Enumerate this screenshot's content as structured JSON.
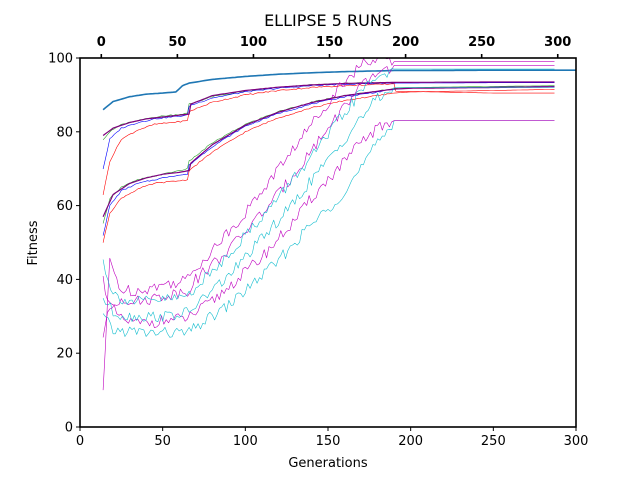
{
  "chart_data": {
    "type": "line",
    "title": "ELLIPSE 5 RUNS",
    "xlabel": "Generations",
    "ylabel": "Fitness",
    "xlim": [
      0,
      300
    ],
    "ylim": [
      0,
      100
    ],
    "xticks": [
      0,
      50,
      100,
      150,
      200,
      250,
      300
    ],
    "yticks": [
      0,
      20,
      40,
      60,
      80,
      100
    ],
    "top_axis": {
      "offset": 14,
      "xlim": [
        -14,
        312
      ],
      "ticks": [
        0,
        50,
        100,
        150,
        200,
        250,
        300
      ]
    },
    "grid": false,
    "legend": "none",
    "series": [
      {
        "color": "#1f77b4",
        "width": 1.6,
        "x": [
          14,
          20,
          30,
          40,
          50,
          58,
          62,
          66,
          80,
          100,
          120,
          140,
          160,
          180,
          190,
          200,
          250,
          300
        ],
        "y": [
          86,
          88.2,
          89.5,
          90.2,
          90.5,
          90.8,
          92.5,
          93.2,
          94.2,
          95,
          95.6,
          96,
          96.3,
          96.5,
          96.6,
          96.6,
          96.7,
          96.7
        ]
      },
      {
        "color": "#2ca02c",
        "width": 0.6,
        "x": [
          14,
          18,
          25,
          35,
          45,
          55,
          65,
          66,
          80,
          100,
          120,
          140,
          160,
          180,
          188,
          200,
          250,
          287
        ],
        "y": [
          78,
          80,
          82,
          83,
          84,
          84.5,
          85,
          87.5,
          89.5,
          91,
          92,
          92.7,
          93.1,
          93.3,
          93.4,
          93.4,
          93.5,
          93.5
        ]
      },
      {
        "color": "#0000ff",
        "width": 0.6,
        "x": [
          14,
          18,
          25,
          35,
          45,
          55,
          65,
          66,
          80,
          100,
          120,
          140,
          160,
          180,
          188,
          200,
          250,
          287
        ],
        "y": [
          70,
          78,
          81,
          82.5,
          83.5,
          84,
          84.5,
          87,
          89.2,
          90.8,
          91.8,
          92.5,
          92.9,
          93.1,
          93.2,
          93.2,
          93.3,
          93.3
        ]
      },
      {
        "color": "#ff0000",
        "width": 0.6,
        "x": [
          14,
          18,
          25,
          35,
          45,
          55,
          65,
          66,
          80,
          100,
          120,
          140,
          160,
          180,
          190,
          191,
          250,
          287
        ],
        "y": [
          63,
          72,
          78,
          80.5,
          82,
          82.5,
          83,
          85.5,
          88,
          90,
          91.2,
          92,
          92.5,
          92.8,
          93,
          91,
          90.5,
          90.5
        ]
      },
      {
        "color": "#7f007f",
        "width": 1.2,
        "x": [
          14,
          20,
          30,
          40,
          50,
          60,
          66,
          67,
          80,
          100,
          120,
          140,
          160,
          180,
          190,
          200,
          250,
          287
        ],
        "y": [
          79,
          81,
          82.5,
          83.5,
          84,
          84.5,
          84.8,
          87.5,
          89.8,
          91.2,
          92.1,
          92.7,
          93.1,
          93.3,
          93.4,
          93.4,
          93.5,
          93.5
        ]
      },
      {
        "color": "#2ca02c",
        "width": 0.6,
        "x": [
          14,
          18,
          25,
          35,
          45,
          55,
          65,
          66,
          80,
          100,
          120,
          140,
          160,
          180,
          190,
          200,
          250,
          287
        ],
        "y": [
          55,
          62,
          65,
          67,
          68,
          69,
          70,
          72,
          77,
          82,
          85.5,
          88,
          89.8,
          91,
          91.8,
          92,
          92.3,
          92.5
        ]
      },
      {
        "color": "#0000ff",
        "width": 0.6,
        "x": [
          14,
          18,
          25,
          35,
          45,
          55,
          65,
          66,
          80,
          100,
          120,
          140,
          160,
          180,
          190,
          200,
          250,
          287
        ],
        "y": [
          52,
          60,
          64,
          66,
          67,
          68,
          68.5,
          71,
          76,
          81.5,
          85,
          87.5,
          89.5,
          90.8,
          91.5,
          91.8,
          92.1,
          92.3
        ]
      },
      {
        "color": "#ff0000",
        "width": 0.6,
        "x": [
          14,
          18,
          25,
          35,
          45,
          55,
          65,
          66,
          80,
          100,
          120,
          140,
          160,
          180,
          190,
          200,
          250,
          287
        ],
        "y": [
          50,
          58,
          62,
          64.5,
          66,
          66.5,
          67,
          69.5,
          74.5,
          80,
          83.8,
          86.5,
          88.5,
          89.8,
          90.5,
          90.8,
          91.2,
          91.5
        ]
      },
      {
        "color": "#7f007f",
        "width": 1.2,
        "x": [
          14,
          20,
          30,
          40,
          50,
          60,
          66,
          67,
          80,
          100,
          120,
          140,
          160,
          180,
          190,
          200,
          250,
          287
        ],
        "y": [
          57,
          63,
          66,
          67.5,
          68.5,
          69,
          69.5,
          71.5,
          76.5,
          81.8,
          85.3,
          87.9,
          89.8,
          91,
          91.6,
          91.8,
          92,
          92.2
        ]
      },
      {
        "color": "#17becf",
        "width": 0.6,
        "x": [
          14,
          20,
          30,
          40,
          50,
          60,
          66,
          70,
          80,
          90,
          100,
          110,
          120,
          130,
          140,
          150,
          160,
          170,
          180,
          190,
          191,
          250,
          287
        ],
        "y": [
          30,
          26,
          26,
          25.5,
          25.5,
          25.5,
          25.5,
          27,
          30,
          33,
          37,
          41,
          45,
          50,
          55,
          59,
          64,
          70,
          77,
          83,
          83,
          83,
          83
        ]
      },
      {
        "color": "#bf00bf",
        "width": 0.6,
        "x": [
          14,
          18,
          25,
          35,
          45,
          55,
          65,
          70,
          80,
          90,
          100,
          110,
          120,
          130,
          140,
          150,
          160,
          170,
          180,
          190,
          191,
          250,
          287
        ],
        "y": [
          40,
          33,
          29,
          28,
          28.5,
          29,
          29.5,
          31,
          34,
          38,
          42,
          46,
          51,
          56,
          62,
          67,
          72,
          77,
          81,
          83,
          83,
          83,
          83
        ]
      },
      {
        "color": "#17becf",
        "width": 0.6,
        "x": [
          14,
          20,
          30,
          40,
          50,
          60,
          66,
          70,
          80,
          90,
          100,
          110,
          120,
          130,
          140,
          150,
          160,
          170,
          180,
          190,
          191,
          250,
          287
        ],
        "y": [
          35,
          31,
          30,
          30,
          30,
          30.5,
          31,
          33,
          37,
          41,
          46,
          51,
          56,
          61,
          67,
          72,
          78,
          84,
          89,
          92,
          92,
          92,
          92
        ]
      },
      {
        "color": "#bf00bf",
        "width": 0.6,
        "x": [
          14,
          18,
          25,
          35,
          45,
          55,
          65,
          70,
          80,
          90,
          100,
          110,
          120,
          130,
          140,
          150,
          160,
          170,
          180,
          190,
          191,
          250,
          287
        ],
        "y": [
          25,
          32,
          35,
          34,
          35,
          36,
          37,
          40,
          44,
          48,
          53,
          58,
          63,
          69,
          75,
          81,
          87,
          92,
          96,
          98,
          98,
          98,
          98
        ]
      },
      {
        "color": "#bf00bf",
        "width": 0.6,
        "x": [
          14,
          18,
          25,
          35,
          45,
          55,
          65,
          70,
          80,
          90,
          100,
          110,
          120,
          130,
          140,
          150,
          160,
          170,
          180,
          190,
          191,
          250,
          287
        ],
        "y": [
          10,
          45,
          37,
          37,
          38,
          39,
          40,
          43,
          48,
          53,
          58,
          64,
          70,
          76,
          82,
          88,
          94,
          98,
          100,
          99,
          99,
          99,
          99
        ]
      },
      {
        "color": "#17becf",
        "width": 0.6,
        "x": [
          14,
          20,
          30,
          40,
          50,
          60,
          66,
          70,
          80,
          90,
          100,
          110,
          120,
          130,
          140,
          150,
          160,
          170,
          180,
          190,
          191,
          250,
          287
        ],
        "y": [
          45,
          36,
          34,
          34,
          34.5,
          35,
          36,
          38,
          42,
          47,
          52,
          57,
          62,
          68,
          73,
          79,
          85,
          91,
          95,
          97,
          97,
          97,
          97
        ]
      }
    ]
  }
}
